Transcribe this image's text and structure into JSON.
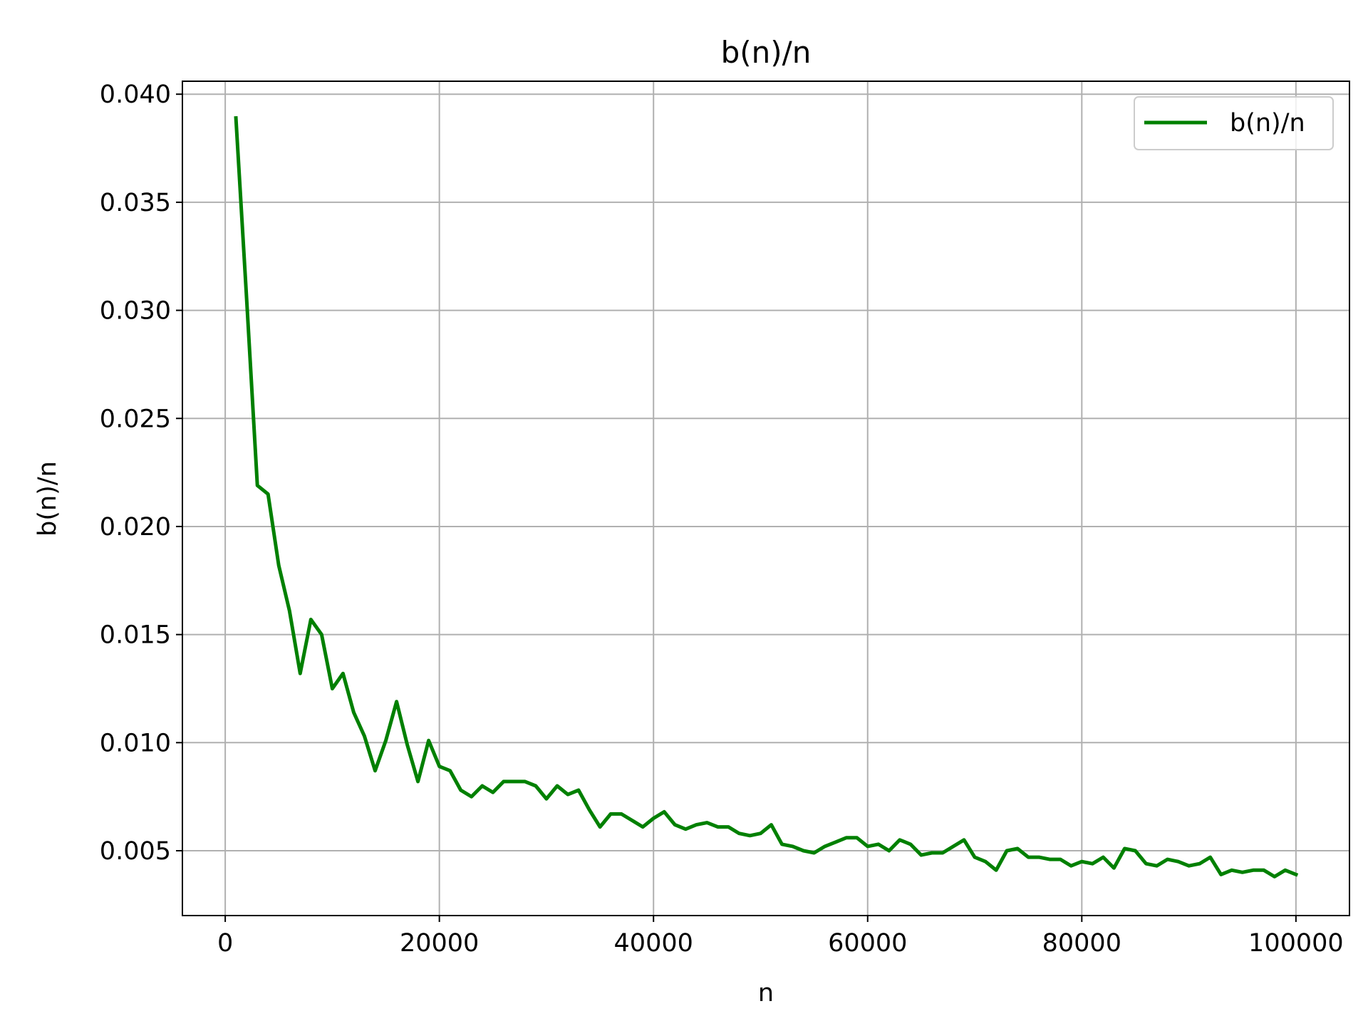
{
  "chart_data": {
    "type": "line",
    "title": "b(n)/n",
    "xlabel": "n",
    "ylabel": "b(n)/n",
    "xlim": [
      -4000,
      105000
    ],
    "ylim": [
      0.002,
      0.0406
    ],
    "x_ticks": [
      0,
      20000,
      40000,
      60000,
      80000,
      100000
    ],
    "x_tick_labels": [
      "0",
      "20000",
      "40000",
      "60000",
      "80000",
      "100000"
    ],
    "y_ticks": [
      0.005,
      0.01,
      0.015,
      0.02,
      0.025,
      0.03,
      0.035,
      0.04
    ],
    "y_tick_labels": [
      "0.005",
      "0.010",
      "0.015",
      "0.020",
      "0.025",
      "0.030",
      "0.035",
      "0.040"
    ],
    "grid": true,
    "legend_position": "top-right",
    "series": [
      {
        "name": "b(n)/n",
        "color": "#008000",
        "x": [
          1000,
          2000,
          3000,
          4000,
          5000,
          6000,
          7000,
          8000,
          9000,
          10000,
          11000,
          12000,
          13000,
          14000,
          15000,
          16000,
          17000,
          18000,
          19000,
          20000,
          21000,
          22000,
          23000,
          24000,
          25000,
          26000,
          27000,
          28000,
          29000,
          30000,
          31000,
          32000,
          33000,
          34000,
          35000,
          36000,
          37000,
          38000,
          39000,
          40000,
          41000,
          42000,
          43000,
          44000,
          45000,
          46000,
          47000,
          48000,
          49000,
          50000,
          51000,
          52000,
          53000,
          54000,
          55000,
          56000,
          57000,
          58000,
          59000,
          60000,
          61000,
          62000,
          63000,
          64000,
          65000,
          66000,
          67000,
          68000,
          69000,
          70000,
          71000,
          72000,
          73000,
          74000,
          75000,
          76000,
          77000,
          78000,
          79000,
          80000,
          81000,
          82000,
          83000,
          84000,
          85000,
          86000,
          87000,
          88000,
          89000,
          90000,
          91000,
          92000,
          93000,
          94000,
          95000,
          96000,
          97000,
          98000,
          99000,
          100000
        ],
        "y": [
          0.0389,
          0.0305,
          0.0219,
          0.0215,
          0.0182,
          0.0161,
          0.0132,
          0.0157,
          0.015,
          0.0125,
          0.0132,
          0.0114,
          0.0103,
          0.0087,
          0.0101,
          0.0119,
          0.0099,
          0.0082,
          0.0101,
          0.0089,
          0.0087,
          0.0078,
          0.0075,
          0.008,
          0.0077,
          0.0082,
          0.0082,
          0.0082,
          0.008,
          0.0074,
          0.008,
          0.0076,
          0.0078,
          0.0069,
          0.0061,
          0.0067,
          0.0067,
          0.0064,
          0.0061,
          0.0065,
          0.0068,
          0.0062,
          0.006,
          0.0062,
          0.0063,
          0.0061,
          0.0061,
          0.0058,
          0.0057,
          0.0058,
          0.0062,
          0.0053,
          0.0052,
          0.005,
          0.0049,
          0.0052,
          0.0054,
          0.0056,
          0.0056,
          0.0052,
          0.0053,
          0.005,
          0.0055,
          0.0053,
          0.0048,
          0.0049,
          0.0049,
          0.0052,
          0.0055,
          0.0047,
          0.0045,
          0.0041,
          0.005,
          0.0051,
          0.0047,
          0.0047,
          0.0046,
          0.0046,
          0.0043,
          0.0045,
          0.0044,
          0.0047,
          0.0042,
          0.0051,
          0.005,
          0.0044,
          0.0043,
          0.0046,
          0.0045,
          0.0043,
          0.0044,
          0.0047,
          0.0039,
          0.0041,
          0.004,
          0.0041,
          0.0041,
          0.0038,
          0.0041,
          0.0039
        ]
      }
    ]
  }
}
